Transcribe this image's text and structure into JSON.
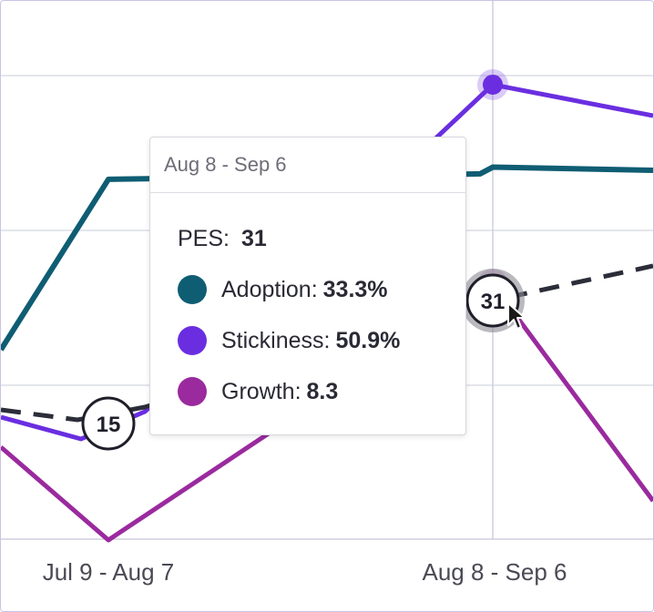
{
  "chart_data": {
    "type": "line",
    "categories": [
      "Jul 9 - Aug 7",
      "Aug 8 - Sep 6"
    ],
    "series": [
      {
        "name": "PES",
        "values": [
          15,
          31
        ],
        "color": "#2b2d38",
        "style": "dashed",
        "labels": [
          "15",
          "31"
        ]
      },
      {
        "name": "Adoption",
        "values": [
          30.7,
          33.3
        ],
        "color": "#0f5d73"
      },
      {
        "name": "Stickiness",
        "values": [
          17.5,
          50.9
        ],
        "color": "#6a2ee0"
      },
      {
        "name": "Growth",
        "values": [
          -14.0,
          8.3
        ],
        "color": "#9a2a9e"
      }
    ],
    "grid": true,
    "highlighted_category": "Aug 8 - Sep 6"
  },
  "tooltip": {
    "title": "Aug 8 - Sep 6",
    "pes_label": "PES:",
    "pes_value": "31",
    "rows": [
      {
        "label": "Adoption:",
        "value": "33.3%",
        "color": "#0f5d73"
      },
      {
        "label": "Stickiness:",
        "value": "50.9%",
        "color": "#6a2ee0"
      },
      {
        "label": "Growth:",
        "value": "8.3",
        "color": "#9a2a9e"
      }
    ]
  }
}
